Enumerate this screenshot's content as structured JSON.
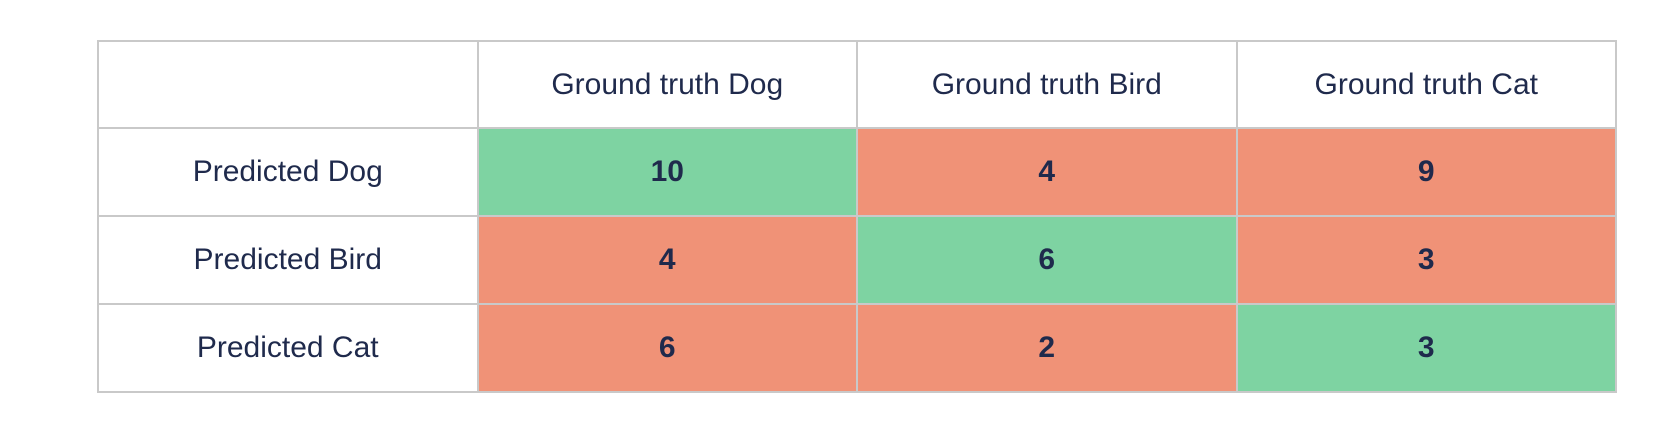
{
  "table": {
    "corner_label": "",
    "column_headers": [
      "Ground truth Dog",
      "Ground truth Bird",
      "Ground truth Cat"
    ],
    "rows": [
      {
        "label": "Predicted Dog",
        "values": [
          "10",
          "4",
          "9"
        ]
      },
      {
        "label": "Predicted Bird",
        "values": [
          "4",
          "6",
          "3"
        ]
      },
      {
        "label": "Predicted Cat",
        "values": [
          "6",
          "2",
          "3"
        ]
      }
    ]
  },
  "colors": {
    "correct_cell": "#7ed3a2",
    "incorrect_cell": "#f09277",
    "text": "#1f2a4c",
    "border": "#c9c9c9",
    "background": "#ffffff"
  },
  "chart_data": {
    "type": "table",
    "subtype": "confusion-matrix",
    "title": "",
    "columns": [
      "Ground truth Dog",
      "Ground truth Bird",
      "Ground truth Cat"
    ],
    "rows": [
      "Predicted Dog",
      "Predicted Bird",
      "Predicted Cat"
    ],
    "values": [
      [
        10,
        4,
        9
      ],
      [
        4,
        6,
        3
      ],
      [
        6,
        2,
        3
      ]
    ],
    "highlight_rule": "diagonal (correct) cells green, off-diagonal (incorrect) cells salmon",
    "legend_position": "none",
    "grid": true
  }
}
